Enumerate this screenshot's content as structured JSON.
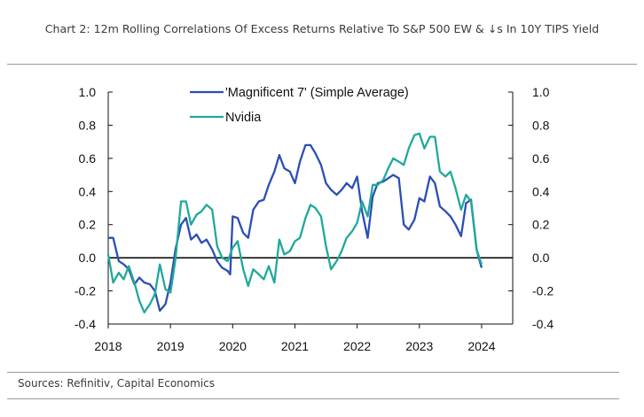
{
  "title": "Chart 2: 12m Rolling Correlations Of Excess Returns Relative To S&P 500 EW & ↓s In 10Y TIPS Yield",
  "source": "Sources: Refinitiv, Capital Economics",
  "chart_data": {
    "type": "line",
    "grid": false,
    "legend_position": "top-center",
    "ylim": [
      -0.4,
      1.0
    ],
    "y_ticks": [
      "1.0",
      "0.8",
      "0.6",
      "0.4",
      "0.2",
      "0.0",
      "-0.2",
      "-0.4"
    ],
    "y_tick_values": [
      1.0,
      0.8,
      0.6,
      0.4,
      0.2,
      0.0,
      -0.2,
      -0.4
    ],
    "xlim": [
      2018.0,
      2024.5
    ],
    "x_ticks": [
      "2018",
      "2019",
      "2020",
      "2021",
      "2022",
      "2023",
      "2024"
    ],
    "x_tick_values": [
      2018,
      2019,
      2020,
      2021,
      2022,
      2023,
      2024
    ],
    "zero_line": 0.0,
    "series": [
      {
        "name": "'Magnificent 7' (Simple Average)",
        "color": "#2a4fb5",
        "points": [
          [
            2018.0,
            0.12
          ],
          [
            2018.08,
            0.12
          ],
          [
            2018.17,
            -0.02
          ],
          [
            2018.25,
            -0.04
          ],
          [
            2018.33,
            -0.07
          ],
          [
            2018.42,
            -0.16
          ],
          [
            2018.5,
            -0.12
          ],
          [
            2018.58,
            -0.15
          ],
          [
            2018.67,
            -0.16
          ],
          [
            2018.75,
            -0.2
          ],
          [
            2018.83,
            -0.32
          ],
          [
            2018.92,
            -0.28
          ],
          [
            2019.0,
            -0.15
          ],
          [
            2019.08,
            0.05
          ],
          [
            2019.17,
            0.2
          ],
          [
            2019.25,
            0.24
          ],
          [
            2019.33,
            0.11
          ],
          [
            2019.42,
            0.14
          ],
          [
            2019.5,
            0.09
          ],
          [
            2019.58,
            0.11
          ],
          [
            2019.67,
            0.05
          ],
          [
            2019.75,
            -0.02
          ],
          [
            2019.83,
            -0.06
          ],
          [
            2019.92,
            -0.08
          ],
          [
            2019.96,
            -0.1
          ],
          [
            2020.0,
            0.25
          ],
          [
            2020.08,
            0.24
          ],
          [
            2020.17,
            0.15
          ],
          [
            2020.25,
            0.12
          ],
          [
            2020.33,
            0.29
          ],
          [
            2020.42,
            0.34
          ],
          [
            2020.5,
            0.35
          ],
          [
            2020.58,
            0.44
          ],
          [
            2020.67,
            0.52
          ],
          [
            2020.75,
            0.62
          ],
          [
            2020.83,
            0.54
          ],
          [
            2020.92,
            0.52
          ],
          [
            2021.0,
            0.45
          ],
          [
            2021.08,
            0.58
          ],
          [
            2021.17,
            0.68
          ],
          [
            2021.25,
            0.68
          ],
          [
            2021.33,
            0.63
          ],
          [
            2021.42,
            0.56
          ],
          [
            2021.5,
            0.45
          ],
          [
            2021.58,
            0.41
          ],
          [
            2021.67,
            0.38
          ],
          [
            2021.75,
            0.41
          ],
          [
            2021.83,
            0.45
          ],
          [
            2021.92,
            0.42
          ],
          [
            2022.0,
            0.49
          ],
          [
            2022.08,
            0.28
          ],
          [
            2022.17,
            0.12
          ],
          [
            2022.25,
            0.37
          ],
          [
            2022.33,
            0.45
          ],
          [
            2022.42,
            0.46
          ],
          [
            2022.5,
            0.48
          ],
          [
            2022.58,
            0.5
          ],
          [
            2022.67,
            0.48
          ],
          [
            2022.75,
            0.2
          ],
          [
            2022.83,
            0.17
          ],
          [
            2022.92,
            0.23
          ],
          [
            2023.0,
            0.36
          ],
          [
            2023.08,
            0.34
          ],
          [
            2023.17,
            0.49
          ],
          [
            2023.25,
            0.45
          ],
          [
            2023.33,
            0.31
          ],
          [
            2023.42,
            0.28
          ],
          [
            2023.5,
            0.25
          ],
          [
            2023.58,
            0.2
          ],
          [
            2023.67,
            0.13
          ],
          [
            2023.75,
            0.33
          ],
          [
            2023.83,
            0.35
          ],
          [
            2023.92,
            0.05
          ],
          [
            2024.0,
            -0.06
          ]
        ]
      },
      {
        "name": "Nvidia",
        "color": "#1fa99a",
        "points": [
          [
            2018.0,
            0.02
          ],
          [
            2018.08,
            -0.15
          ],
          [
            2018.17,
            -0.09
          ],
          [
            2018.25,
            -0.13
          ],
          [
            2018.33,
            -0.05
          ],
          [
            2018.42,
            -0.15
          ],
          [
            2018.5,
            -0.26
          ],
          [
            2018.58,
            -0.33
          ],
          [
            2018.67,
            -0.28
          ],
          [
            2018.75,
            -0.22
          ],
          [
            2018.83,
            -0.04
          ],
          [
            2018.92,
            -0.19
          ],
          [
            2019.0,
            -0.21
          ],
          [
            2019.08,
            -0.01
          ],
          [
            2019.17,
            0.34
          ],
          [
            2019.25,
            0.34
          ],
          [
            2019.33,
            0.2
          ],
          [
            2019.42,
            0.26
          ],
          [
            2019.5,
            0.28
          ],
          [
            2019.58,
            0.32
          ],
          [
            2019.67,
            0.29
          ],
          [
            2019.75,
            0.07
          ],
          [
            2019.83,
            0.0
          ],
          [
            2019.92,
            -0.02
          ],
          [
            2020.0,
            0.06
          ],
          [
            2020.08,
            0.1
          ],
          [
            2020.17,
            -0.07
          ],
          [
            2020.25,
            -0.17
          ],
          [
            2020.33,
            -0.07
          ],
          [
            2020.42,
            -0.1
          ],
          [
            2020.5,
            -0.13
          ],
          [
            2020.58,
            -0.05
          ],
          [
            2020.67,
            -0.15
          ],
          [
            2020.75,
            0.11
          ],
          [
            2020.83,
            0.02
          ],
          [
            2020.92,
            0.04
          ],
          [
            2021.0,
            0.1
          ],
          [
            2021.08,
            0.12
          ],
          [
            2021.17,
            0.24
          ],
          [
            2021.25,
            0.32
          ],
          [
            2021.33,
            0.3
          ],
          [
            2021.42,
            0.25
          ],
          [
            2021.5,
            0.07
          ],
          [
            2021.58,
            -0.07
          ],
          [
            2021.67,
            -0.02
          ],
          [
            2021.75,
            0.04
          ],
          [
            2021.83,
            0.12
          ],
          [
            2021.92,
            0.16
          ],
          [
            2022.0,
            0.21
          ],
          [
            2022.08,
            0.34
          ],
          [
            2022.17,
            0.25
          ],
          [
            2022.25,
            0.44
          ],
          [
            2022.33,
            0.44
          ],
          [
            2022.42,
            0.47
          ],
          [
            2022.5,
            0.54
          ],
          [
            2022.58,
            0.6
          ],
          [
            2022.67,
            0.58
          ],
          [
            2022.75,
            0.56
          ],
          [
            2022.83,
            0.66
          ],
          [
            2022.92,
            0.74
          ],
          [
            2023.0,
            0.75
          ],
          [
            2023.08,
            0.66
          ],
          [
            2023.17,
            0.73
          ],
          [
            2023.25,
            0.73
          ],
          [
            2023.33,
            0.52
          ],
          [
            2023.42,
            0.49
          ],
          [
            2023.5,
            0.52
          ],
          [
            2023.58,
            0.42
          ],
          [
            2023.67,
            0.29
          ],
          [
            2023.75,
            0.38
          ],
          [
            2023.83,
            0.34
          ],
          [
            2023.92,
            0.05
          ],
          [
            2024.0,
            -0.04
          ]
        ]
      }
    ]
  }
}
